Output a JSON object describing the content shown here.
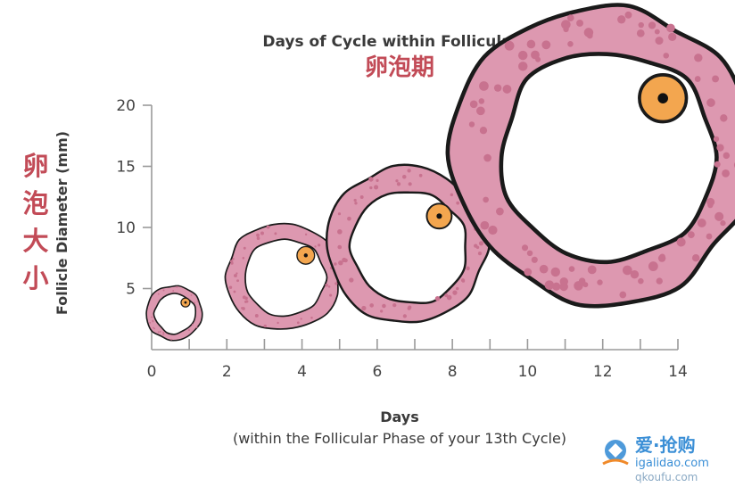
{
  "chart_data": {
    "type": "scatter",
    "title": "Days of Cycle within Follicular Phase",
    "subtitle": "卵泡期",
    "xlabel": "Days",
    "xlabel_sub": "(within the Follicular Phase of your 13th Cycle)",
    "ylabel": "Follicle Diameter (mm)",
    "ylabel_cn": [
      "卵",
      "泡",
      "大",
      "小"
    ],
    "xlim": [
      0,
      14
    ],
    "ylim": [
      0,
      20
    ],
    "x_ticks": [
      0,
      2,
      4,
      6,
      8,
      10,
      12,
      14
    ],
    "y_ticks": [
      5,
      10,
      15,
      20
    ],
    "grid": false,
    "series": [
      {
        "values": [
          {
            "x": 0.6,
            "y": 3
          },
          {
            "x": 3.5,
            "y": 6
          },
          {
            "x": 6.8,
            "y": 8.5
          },
          {
            "x": 12.0,
            "y": 16
          }
        ]
      }
    ],
    "colors": {
      "follicle_fill": "#dd98b0",
      "follicle_stroke": "#1a1a1a",
      "follicle_speckle": "#c8728f",
      "oocyte_fill": "#f3a64f",
      "oocyte_core": "#111111",
      "chinese_text": "#c24b57"
    }
  },
  "watermark": {
    "main": "爱·抢购",
    "url": "igalidao.com",
    "sub": "qkoufu.com"
  }
}
